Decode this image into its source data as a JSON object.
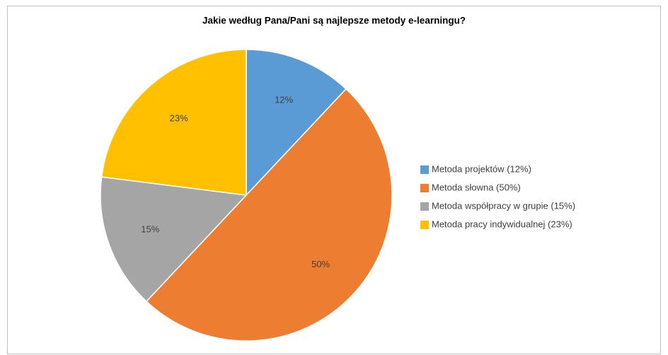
{
  "chart_data": {
    "type": "pie",
    "title": "Jakie według Pana/Pani są najlepsze metody e-learningu?",
    "categories": [
      "Metoda projektów (12%)",
      "Metoda słowna (50%)",
      "Metoda współpracy w grupie (15%)",
      "Metoda pracy indywidualnej (23%)"
    ],
    "values": [
      12,
      50,
      15,
      23
    ],
    "value_labels": [
      "12%",
      "50%",
      "15%",
      "23%"
    ],
    "colors": [
      "#5b9bd5",
      "#ed7d31",
      "#a5a5a5",
      "#ffc000"
    ],
    "legend": "right"
  }
}
